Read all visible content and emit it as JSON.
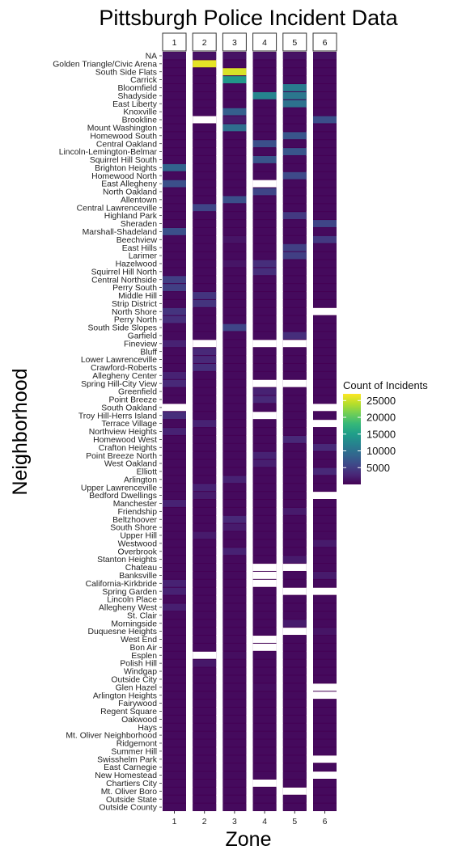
{
  "chart_data": {
    "type": "heatmap",
    "title": "Pittsburgh Police Incident Data",
    "xlabel": "Zone",
    "ylabel": "Neighborhood",
    "facets": [
      "1",
      "2",
      "3",
      "4",
      "5",
      "6"
    ],
    "neighborhoods": [
      "NA",
      "Golden Triangle/Civic Arena",
      "South Side Flats",
      "Carrick",
      "Bloomfield",
      "Shadyside",
      "East Liberty",
      "Knoxville",
      "Brookline",
      "Mount Washington",
      "Homewood South",
      "Central Oakland",
      "Lincoln-Lemington-Belmar",
      "Squirrel Hill South",
      "Brighton Heights",
      "Homewood North",
      "East Allegheny",
      "North Oakland",
      "Allentown",
      "Central Lawrenceville",
      "Highland Park",
      "Sheraden",
      "Marshall-Shadeland",
      "Beechview",
      "East Hills",
      "Larimer",
      "Hazelwood",
      "Squirrel Hill North",
      "Central Northside",
      "Perry South",
      "Middle Hill",
      "Strip District",
      "North Shore",
      "Perry North",
      "South Side Slopes",
      "Garfield",
      "Fineview",
      "Bluff",
      "Lower Lawrenceville",
      "Crawford-Roberts",
      "Allegheny Center",
      "Spring Hill-City View",
      "Greenfield",
      "Point Breeze",
      "South Oakland",
      "Troy Hill-Herrs Island",
      "Terrace Village",
      "Northview Heights",
      "Homewood West",
      "Crafton Heights",
      "Point Breeze North",
      "West Oakland",
      "Elliott",
      "Arlington",
      "Upper Lawrenceville",
      "Bedford Dwellings",
      "Manchester",
      "Friendship",
      "Beltzhoover",
      "South Shore",
      "Upper Hill",
      "Westwood",
      "Overbrook",
      "Stanton Heights",
      "Chateau",
      "Banksville",
      "California-Kirkbride",
      "Spring Garden",
      "Lincoln Place",
      "Allegheny West",
      "St. Clair",
      "Morningside",
      "Duquesne Heights",
      "West End",
      "Bon Air",
      "Esplen",
      "Polish Hill",
      "Windgap",
      "Outside City",
      "Glen Hazel",
      "Arlington Heights",
      "Fairywood",
      "Regent Square",
      "Oakwood",
      "Hays",
      "Mt. Oliver Neighborhood",
      "Ridgemont",
      "Summer Hill",
      "Swisshelm Park",
      "East Carnegie",
      "New Homestead",
      "Chartiers City",
      "Mt. Oliver Boro",
      "Outside State",
      "Outside County"
    ],
    "cells": {
      "1": {
        "Brighton Heights": 9000,
        "East Allegheny": 7000,
        "Marshall-Shadeland": 7000,
        "Central Northside": 5500,
        "Perry South": 5500,
        "North Shore": 4500,
        "Perry North": 4000,
        "Fineview": 3000,
        "Allegheny Center": 3000,
        "Spring Hill-City View": 3500,
        "Troy Hill-Herrs Island": 4000,
        "Northview Heights": 3000,
        "Manchester": 3000,
        "California-Kirkbride": 3000,
        "Spring Garden": 3000,
        "Allegheny West": 2800,
        "NA": 1800
      },
      "2": {
        "Golden Triangle/Civic Arena": 26000,
        "Central Lawrenceville": 6000,
        "Middle Hill": 4500,
        "Strip District": 4500,
        "Bluff": 3500,
        "Lower Lawrenceville": 3500,
        "Crawford-Roberts": 4000,
        "Terrace Village": 3000,
        "Upper Lawrenceville": 3000,
        "Bedford Dwellings": 2500,
        "Upper Hill": 2500,
        "Polish Hill": 2200,
        "NA": 1800
      },
      "3": {
        "South Side Flats": 25500,
        "Carrick": 14500,
        "Knoxville": 8500,
        "Mount Washington": 10000,
        "Allentown": 7000,
        "South Side Slopes": 6000,
        "Beltzhoover": 3500,
        "Arlington": 3000,
        "Overbrook": 3000,
        "South Shore": 2500,
        "Hazelwood": 2000,
        "Brookline": 2500,
        "Beechview": 2000,
        "Esplen": 1500,
        "NA": 1800
      },
      "4": {
        "Shadyside": 12500,
        "Central Oakland": 7000,
        "Squirrel Hill South": 7500,
        "North Oakland": 6000,
        "Hazelwood": 4000,
        "Squirrel Hill North": 4000,
        "Greenfield": 3000,
        "Point Breeze": 3500,
        "Point Breeze North": 3000,
        "West Oakland": 2800,
        "Regent Square": 1200,
        "Glen Hazel": 1500,
        "Swisshelm Park": 1200,
        "NA": 1800
      },
      "5": {
        "Bloomfield": 11500,
        "Shadyside": 11000,
        "East Liberty": 10500,
        "Homewood South": 7500,
        "Lincoln-Lemington-Belmar": 7500,
        "Homewood North": 6500,
        "Highland Park": 5000,
        "East Hills": 5500,
        "Larimer": 5500,
        "Garfield": 4000,
        "Homewood West": 3500,
        "Friendship": 2500,
        "Stanton Heights": 2500,
        "Morningside": 2500,
        "NA": 1800
      },
      "6": {
        "Brookline": 7000,
        "Sheraden": 6000,
        "Beechview": 5000,
        "Crafton Heights": 3500,
        "Elliott": 3500,
        "Westwood": 2500,
        "Banksville": 2500,
        "Duquesne Heights": 2000,
        "NA": 1800
      }
    },
    "missing": {
      "1": [
        "South Oakland"
      ],
      "2": [
        "Brookline",
        "Fineview",
        "Esplen"
      ],
      "4": [
        "East Allegheny",
        "Fineview",
        "Spring Hill-City View",
        "Troy Hill-Herrs Island",
        "Chateau",
        "Banksville",
        "California-Kirkbride",
        "West End",
        "Bon Air",
        "Chartiers City"
      ],
      "5": [
        "Fineview",
        "Spring Hill-City View",
        "Chateau",
        "Spring Garden",
        "Duquesne Heights",
        "Mt. Oliver Boro"
      ],
      "6": [
        "North Shore",
        "South Oakland",
        "Terrace Village",
        "Bedford Dwellings",
        "Spring Garden",
        "Glen Hazel",
        "Arlington Heights",
        "Swisshelm Park",
        "New Homestead"
      ]
    },
    "default_value": 1200,
    "scale_min": 500,
    "scale_max": 27000,
    "colors": {
      "palette": "viridis",
      "stops": [
        "#440154",
        "#482878",
        "#3e4989",
        "#31688e",
        "#26828e",
        "#1f9e89",
        "#35b779",
        "#6ece58",
        "#b5de2b",
        "#fde725"
      ],
      "missing": "#ffffff"
    },
    "legend": {
      "title": "Count of Incidents",
      "ticks": [
        5000,
        10000,
        15000,
        20000,
        25000
      ],
      "placement": "right"
    },
    "grid": false
  }
}
